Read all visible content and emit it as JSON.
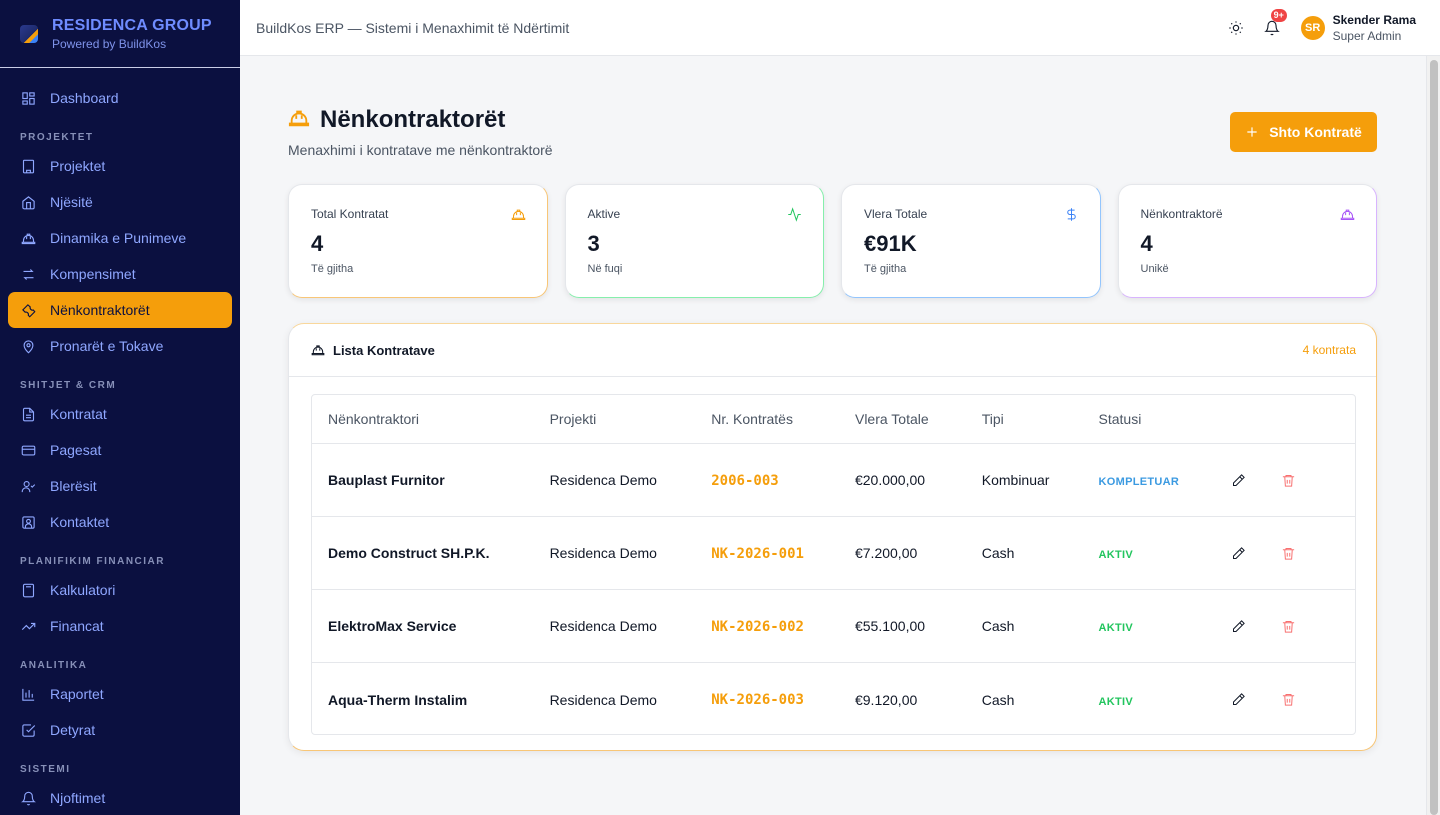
{
  "brand": {
    "title": "RESIDENCA GROUP",
    "subtitle": "Powered by BuildKos"
  },
  "sidebar": {
    "items": [
      {
        "label": "Dashboard",
        "icon": "dashboard-icon"
      },
      {
        "section": "PROJEKTET"
      },
      {
        "label": "Projektet",
        "icon": "building-icon"
      },
      {
        "label": "Njësitë",
        "icon": "home-icon"
      },
      {
        "label": "Dinamika e Punimeve",
        "icon": "hardhat-icon"
      },
      {
        "label": "Kompensimet",
        "icon": "arrows-swap-icon"
      },
      {
        "label": "Nënkontraktorët",
        "icon": "wrench-icon",
        "active": true
      },
      {
        "label": "Pronarët e Tokave",
        "icon": "map-pin-icon"
      },
      {
        "section": "SHITJET & CRM"
      },
      {
        "label": "Kontratat",
        "icon": "file-text-icon"
      },
      {
        "label": "Pagesat",
        "icon": "credit-card-icon"
      },
      {
        "label": "Blerësit",
        "icon": "users-icon"
      },
      {
        "label": "Kontaktet",
        "icon": "contact-icon"
      },
      {
        "section": "PLANIFIKIM FINANCIAR"
      },
      {
        "label": "Kalkulatori",
        "icon": "calculator-icon"
      },
      {
        "label": "Financat",
        "icon": "trending-up-icon"
      },
      {
        "section": "ANALITIKA"
      },
      {
        "label": "Raportet",
        "icon": "bar-chart-icon"
      },
      {
        "label": "Detyrat",
        "icon": "check-square-icon"
      },
      {
        "section": "SISTEMI"
      },
      {
        "label": "Njoftimet",
        "icon": "bell-icon"
      }
    ]
  },
  "topbar": {
    "title": "BuildKos ERP — Sistemi i Menaxhimit të Ndërtimit",
    "notification_badge": "9+",
    "user": {
      "initials": "SR",
      "name": "Skender Rama",
      "role": "Super Admin"
    }
  },
  "page": {
    "title": "Nënkontraktorët",
    "subtitle": "Menaxhimi i kontratave me nënkontraktorë",
    "add_button": "Shto Kontratë"
  },
  "stats": [
    {
      "label": "Total Kontratat",
      "value": "4",
      "note": "Të gjitha",
      "icon": "hardhat-icon",
      "color": "#f59e0b"
    },
    {
      "label": "Aktive",
      "value": "3",
      "note": "Në fuqi",
      "icon": "activity-icon",
      "color": "#22c55e"
    },
    {
      "label": "Vlera Totale",
      "value": "€91K",
      "note": "Të gjitha",
      "icon": "dollar-icon",
      "color": "#3b82f6"
    },
    {
      "label": "Nënkontraktorë",
      "value": "4",
      "note": "Unikë",
      "icon": "hardhat-icon",
      "color": "#a855f7"
    }
  ],
  "list": {
    "title": "Lista Kontratave",
    "count": "4 kontrata",
    "columns": [
      "Nënkontraktori",
      "Projekti",
      "Nr. Kontratës",
      "Vlera Totale",
      "Tipi",
      "Statusi"
    ],
    "rows": [
      {
        "name": "Bauplast Furnitor",
        "project": "Residenca Demo",
        "number": "2006-003",
        "value": "€20.000,00",
        "type": "Kombinuar",
        "status": "KOMPLETUAR",
        "status_color": "#3b9ae1"
      },
      {
        "name": "Demo Construct SH.P.K.",
        "project": "Residenca Demo",
        "number": "NK-2026-001",
        "value": "€7.200,00",
        "type": "Cash",
        "status": "AKTIV",
        "status_color": "#22c55e"
      },
      {
        "name": "ElektroMax Service",
        "project": "Residenca Demo",
        "number": "NK-2026-002",
        "value": "€55.100,00",
        "type": "Cash",
        "status": "AKTIV",
        "status_color": "#22c55e"
      },
      {
        "name": "Aqua-Therm Instalim",
        "project": "Residenca Demo",
        "number": "NK-2026-003",
        "value": "€9.120,00",
        "type": "Cash",
        "status": "AKTIV",
        "status_color": "#22c55e"
      }
    ]
  },
  "colors": {
    "accent": "#f59e0b",
    "sidebar_bg": "#0b1040",
    "nav_text": "#8fa7ff"
  }
}
